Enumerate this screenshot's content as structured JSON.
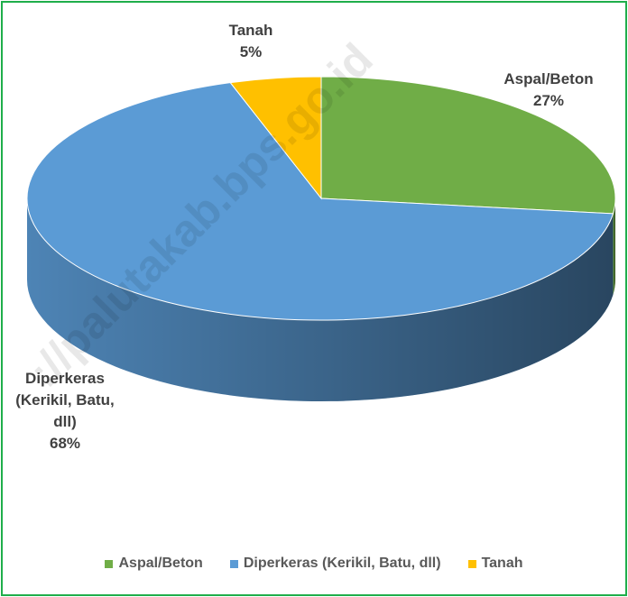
{
  "chart_data": {
    "type": "pie3d",
    "categories": [
      "Aspal/Beton",
      "Diperkeras (Kerikil, Batu, dll)",
      "Tanah"
    ],
    "values": [
      27,
      68,
      5
    ],
    "value_labels": [
      "27%",
      "68%",
      "5%"
    ],
    "colors": [
      "#70ad47",
      "#5b9bd5",
      "#ffc000"
    ],
    "legend": "bottom"
  },
  "watermark": "://palutakab.bps.go.id"
}
